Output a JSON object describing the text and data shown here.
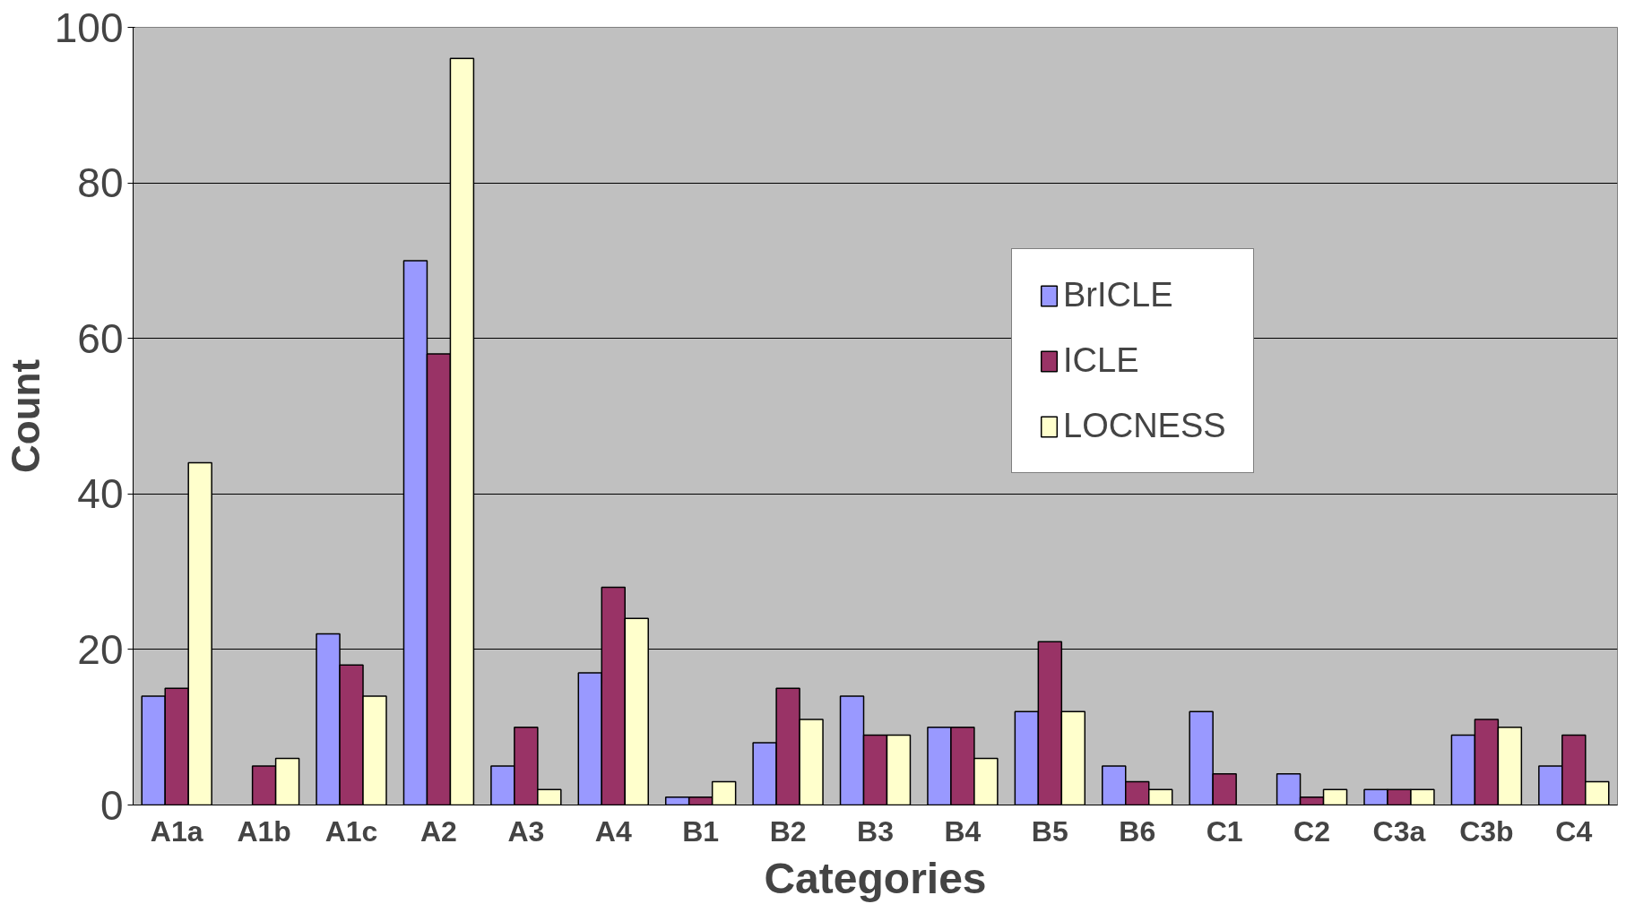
{
  "chart_data": {
    "type": "bar",
    "xlabel": "Categories",
    "ylabel": "Count",
    "categories": [
      "A1a",
      "A1b",
      "A1c",
      "A2",
      "A3",
      "A4",
      "B1",
      "B2",
      "B3",
      "B4",
      "B5",
      "B6",
      "C1",
      "C2",
      "C3a",
      "C3b",
      "C4"
    ],
    "series": [
      {
        "name": "BrICLE",
        "color": "#9999ff",
        "values": [
          14,
          0,
          22,
          70,
          5,
          17,
          1,
          8,
          14,
          10,
          12,
          5,
          12,
          4,
          2,
          9,
          5
        ]
      },
      {
        "name": "ICLE",
        "color": "#993366",
        "values": [
          15,
          5,
          18,
          58,
          10,
          28,
          1,
          15,
          9,
          10,
          21,
          3,
          4,
          1,
          2,
          11,
          9
        ]
      },
      {
        "name": "LOCNESS",
        "color": "#ffffcc",
        "values": [
          44,
          6,
          14,
          96,
          2,
          24,
          3,
          11,
          9,
          6,
          12,
          2,
          0,
          2,
          2,
          10,
          3
        ]
      }
    ],
    "ylim": [
      0,
      100
    ],
    "yticks": [
      0,
      20,
      40,
      60,
      80,
      100
    ],
    "grid": "y",
    "legend": "top right"
  }
}
